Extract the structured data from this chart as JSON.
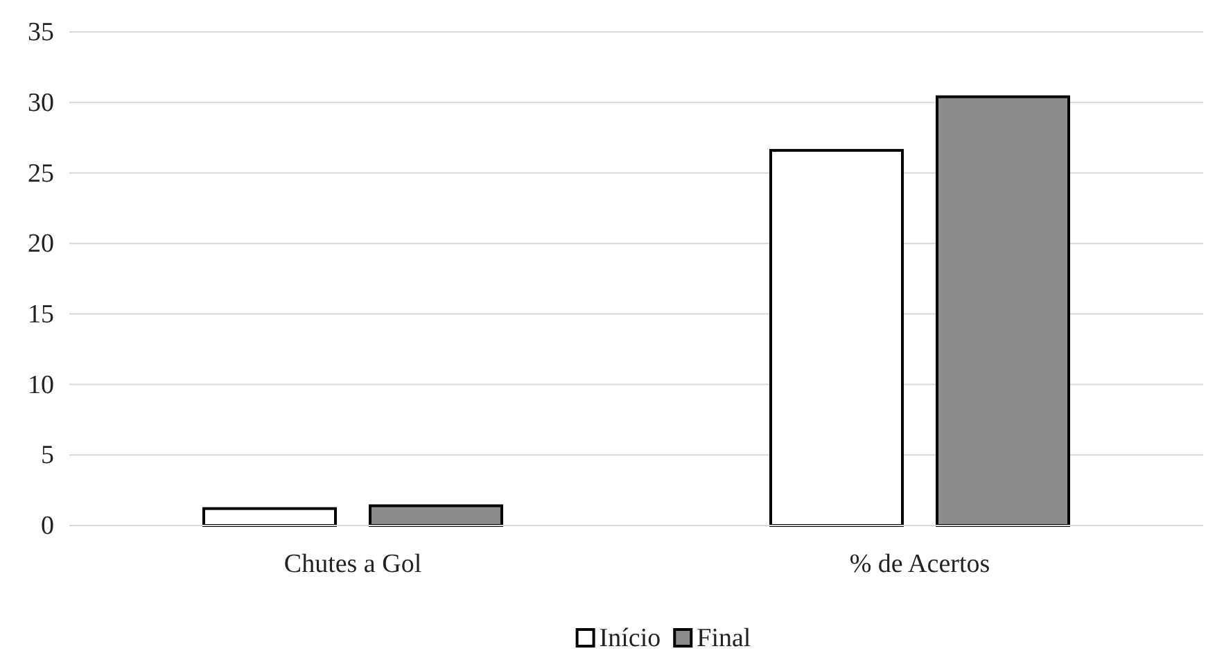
{
  "chart_data": {
    "type": "bar",
    "categories": [
      "Chutes a Gol",
      "% de Acertos"
    ],
    "series": [
      {
        "name": "Início",
        "color": "#ffffff",
        "values": [
          1.2,
          26.6
        ]
      },
      {
        "name": "Final",
        "color": "#8c8c8c",
        "values": [
          1.4,
          30.4
        ]
      }
    ],
    "ylim": [
      0,
      35
    ],
    "yticks": [
      0,
      5,
      10,
      15,
      20,
      25,
      30,
      35
    ],
    "grid": "y",
    "legend": "bottom"
  }
}
